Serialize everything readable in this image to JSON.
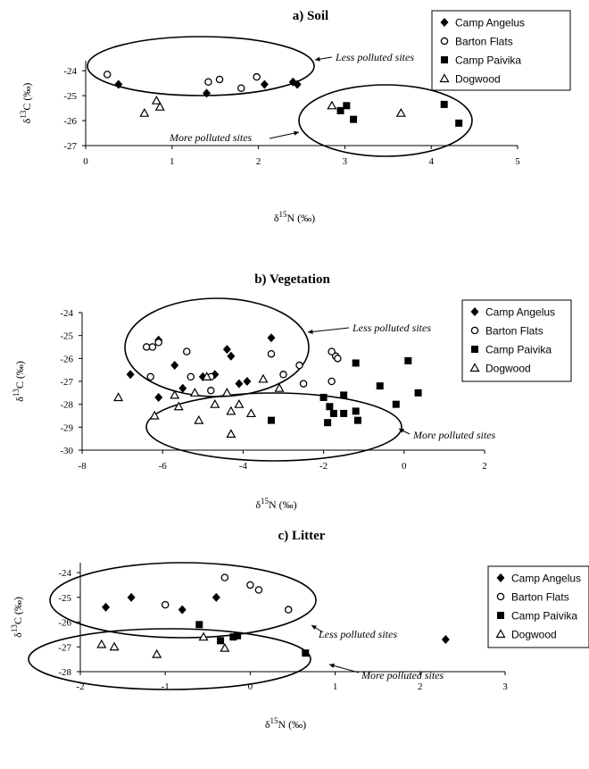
{
  "chart_data": [
    {
      "type": "scatter",
      "title": "a) Soil",
      "ylabel_main": "δ",
      "ylabel_sup": "13",
      "ylabel_rest": "C (‰)",
      "xlabel_main": "δ",
      "xlabel_sup": "15",
      "xlabel_rest": "N (‰)",
      "xlim": [
        0,
        5
      ],
      "ylim": [
        -27,
        -23.6
      ],
      "xticks": [
        0,
        1,
        2,
        3,
        4,
        5
      ],
      "yticks": [
        -24,
        -25,
        -26,
        -27
      ],
      "legend_position": "top-right",
      "series": [
        {
          "name": "Camp Angelus",
          "marker": "diamond",
          "points": [
            [
              0.38,
              -24.55
            ],
            [
              1.4,
              -24.9
            ],
            [
              2.07,
              -24.55
            ],
            [
              2.4,
              -24.45
            ],
            [
              2.45,
              -24.55
            ]
          ]
        },
        {
          "name": "Barton Flats",
          "marker": "circle",
          "points": [
            [
              0.25,
              -24.15
            ],
            [
              1.42,
              -24.45
            ],
            [
              1.55,
              -24.35
            ],
            [
              1.8,
              -24.7
            ],
            [
              1.98,
              -24.25
            ]
          ]
        },
        {
          "name": "Camp Paivika",
          "marker": "square",
          "points": [
            [
              2.95,
              -25.6
            ],
            [
              3.02,
              -25.4
            ],
            [
              3.1,
              -25.95
            ],
            [
              4.15,
              -25.35
            ],
            [
              4.32,
              -26.1
            ]
          ]
        },
        {
          "name": "Dogwood",
          "marker": "triangle",
          "points": [
            [
              0.68,
              -25.7
            ],
            [
              0.82,
              -25.2
            ],
            [
              0.86,
              -25.45
            ],
            [
              2.85,
              -25.4
            ],
            [
              3.65,
              -25.7
            ]
          ]
        }
      ],
      "annotations": [
        {
          "text": "Less polluted sites"
        },
        {
          "text": "More polluted sites"
        }
      ]
    },
    {
      "type": "scatter",
      "title": "b) Vegetation",
      "ylabel_main": "δ",
      "ylabel_sup": "13",
      "ylabel_rest": "C (‰)",
      "xlabel_main": "δ",
      "xlabel_sup": "15",
      "xlabel_rest": "N (‰)",
      "xlim": [
        -8,
        2
      ],
      "ylim": [
        -30,
        -24
      ],
      "xticks": [
        -8,
        -6,
        -4,
        -2,
        0,
        2
      ],
      "yticks": [
        -24,
        -25,
        -26,
        -27,
        -28,
        -29,
        -30
      ],
      "legend_position": "top-right",
      "series": [
        {
          "name": "Camp Angelus",
          "marker": "diamond",
          "points": [
            [
              -6.8,
              -26.7
            ],
            [
              -6.1,
              -25.2
            ],
            [
              -5.7,
              -26.3
            ],
            [
              -5.5,
              -27.3
            ],
            [
              -5.0,
              -26.8
            ],
            [
              -4.7,
              -26.7
            ],
            [
              -4.4,
              -25.6
            ],
            [
              -4.3,
              -25.9
            ],
            [
              -4.1,
              -27.1
            ],
            [
              -3.9,
              -27.0
            ],
            [
              -3.3,
              -25.1
            ],
            [
              -6.1,
              -27.7
            ]
          ]
        },
        {
          "name": "Barton Flats",
          "marker": "circle",
          "points": [
            [
              -6.4,
              -25.5
            ],
            [
              -6.25,
              -25.5
            ],
            [
              -6.3,
              -26.8
            ],
            [
              -6.1,
              -25.3
            ],
            [
              -5.4,
              -25.7
            ],
            [
              -5.3,
              -26.8
            ],
            [
              -4.8,
              -26.8
            ],
            [
              -4.8,
              -27.4
            ],
            [
              -3.3,
              -25.8
            ],
            [
              -3.0,
              -26.7
            ],
            [
              -2.6,
              -26.3
            ],
            [
              -2.5,
              -27.1
            ],
            [
              -1.8,
              -27.0
            ],
            [
              -1.7,
              -25.9
            ],
            [
              -1.65,
              -26.0
            ],
            [
              -1.8,
              -25.7
            ]
          ]
        },
        {
          "name": "Camp Paivika",
          "marker": "square",
          "points": [
            [
              -3.3,
              -28.7
            ],
            [
              -2.0,
              -27.7
            ],
            [
              -1.9,
              -28.8
            ],
            [
              -1.85,
              -28.1
            ],
            [
              -1.75,
              -28.4
            ],
            [
              -1.5,
              -27.6
            ],
            [
              -1.5,
              -28.4
            ],
            [
              -1.2,
              -28.3
            ],
            [
              -1.15,
              -28.7
            ],
            [
              -1.2,
              -26.2
            ],
            [
              -0.6,
              -27.2
            ],
            [
              -0.2,
              -28.0
            ],
            [
              0.1,
              -26.1
            ],
            [
              0.35,
              -27.5
            ]
          ]
        },
        {
          "name": "Dogwood",
          "marker": "triangle",
          "points": [
            [
              -7.1,
              -27.7
            ],
            [
              -6.2,
              -28.5
            ],
            [
              -5.6,
              -28.1
            ],
            [
              -5.2,
              -27.5
            ],
            [
              -5.1,
              -28.7
            ],
            [
              -4.9,
              -26.8
            ],
            [
              -4.7,
              -28.0
            ],
            [
              -4.4,
              -27.5
            ],
            [
              -4.3,
              -28.3
            ],
            [
              -4.3,
              -29.3
            ],
            [
              -4.1,
              -28.0
            ],
            [
              -3.8,
              -28.4
            ],
            [
              -3.5,
              -26.9
            ],
            [
              -3.1,
              -27.3
            ],
            [
              -5.7,
              -27.6
            ]
          ]
        }
      ],
      "annotations": [
        {
          "text": "Less polluted sites"
        },
        {
          "text": "More polluted sites"
        }
      ]
    },
    {
      "type": "scatter",
      "title": "c) Litter",
      "ylabel_main": "δ",
      "ylabel_sup": "13",
      "ylabel_rest": "C (‰)",
      "xlabel_main": "δ",
      "xlabel_sup": "15",
      "xlabel_rest": "N (‰)",
      "xlim": [
        -2,
        3
      ],
      "ylim": [
        -28,
        -23.6
      ],
      "xticks": [
        -2,
        -1,
        0,
        1,
        2,
        3
      ],
      "yticks": [
        -24,
        -25,
        -26,
        -27,
        -28
      ],
      "legend_position": "top-right",
      "series": [
        {
          "name": "Camp Angelus",
          "marker": "diamond",
          "points": [
            [
              -1.7,
              -25.4
            ],
            [
              -1.4,
              -25.0
            ],
            [
              -0.8,
              -25.5
            ],
            [
              -0.4,
              -25.0
            ],
            [
              2.3,
              -26.7
            ]
          ]
        },
        {
          "name": "Barton Flats",
          "marker": "circle",
          "points": [
            [
              -1.0,
              -25.3
            ],
            [
              -0.3,
              -24.2
            ],
            [
              0.0,
              -24.5
            ],
            [
              0.1,
              -24.7
            ],
            [
              0.45,
              -25.5
            ]
          ]
        },
        {
          "name": "Camp Paivika",
          "marker": "square",
          "points": [
            [
              -0.6,
              -26.1
            ],
            [
              -0.35,
              -26.75
            ],
            [
              -0.2,
              -26.6
            ],
            [
              -0.15,
              -26.55
            ],
            [
              0.65,
              -27.25
            ]
          ]
        },
        {
          "name": "Dogwood",
          "marker": "triangle",
          "points": [
            [
              -1.75,
              -26.9
            ],
            [
              -1.6,
              -27.0
            ],
            [
              -1.1,
              -27.3
            ],
            [
              -0.55,
              -26.6
            ],
            [
              -0.3,
              -27.05
            ]
          ]
        }
      ],
      "annotations": [
        {
          "text": "Less polluted sites"
        },
        {
          "text": "More polluted sites"
        }
      ]
    }
  ]
}
